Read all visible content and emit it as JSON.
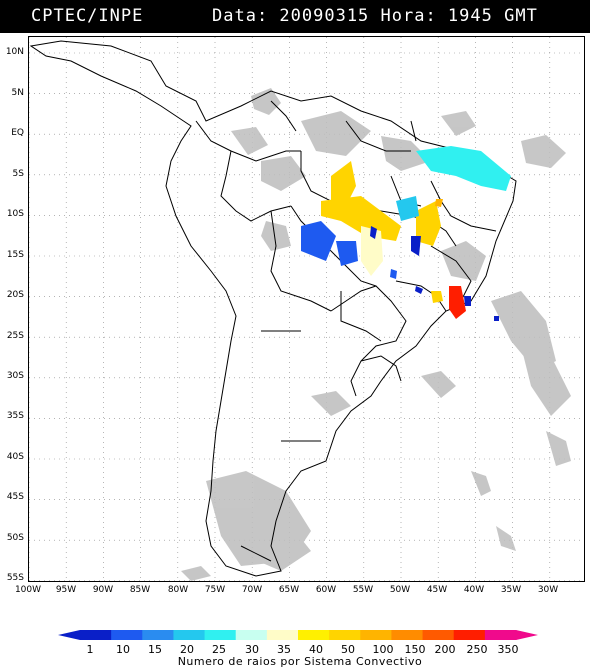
{
  "header": {
    "organization": "CPTEC/INPE",
    "timestamp": "Data: 20090315 Hora: 1945 GMT"
  },
  "map": {
    "lat_labels": [
      "10N",
      "5N",
      "EQ",
      "5S",
      "10S",
      "15S",
      "20S",
      "25S",
      "30S",
      "35S",
      "40S",
      "45S",
      "50S",
      "55S"
    ],
    "lon_labels": [
      "100W",
      "95W",
      "90W",
      "85W",
      "80W",
      "75W",
      "70W",
      "65W",
      "60W",
      "55W",
      "50W",
      "45W",
      "40W",
      "35W",
      "30W"
    ],
    "background_color": "#ffffff",
    "grid_style": "dotted"
  },
  "colorbar": {
    "labels": [
      "1",
      "10",
      "15",
      "20",
      "25",
      "30",
      "35",
      "40",
      "50",
      "100",
      "150",
      "200",
      "250",
      "350"
    ],
    "colors": [
      "#0a1fc8",
      "#1e5af0",
      "#2a8cf0",
      "#24c8ee",
      "#30f0f0",
      "#c8fff0",
      "#fffcc8",
      "#fff000",
      "#ffd400",
      "#ffb400",
      "#ff8c00",
      "#ff5a00",
      "#ff1e00",
      "#f00a8c"
    ],
    "caption": "Numero de raios por Sistema Convectivo"
  }
}
